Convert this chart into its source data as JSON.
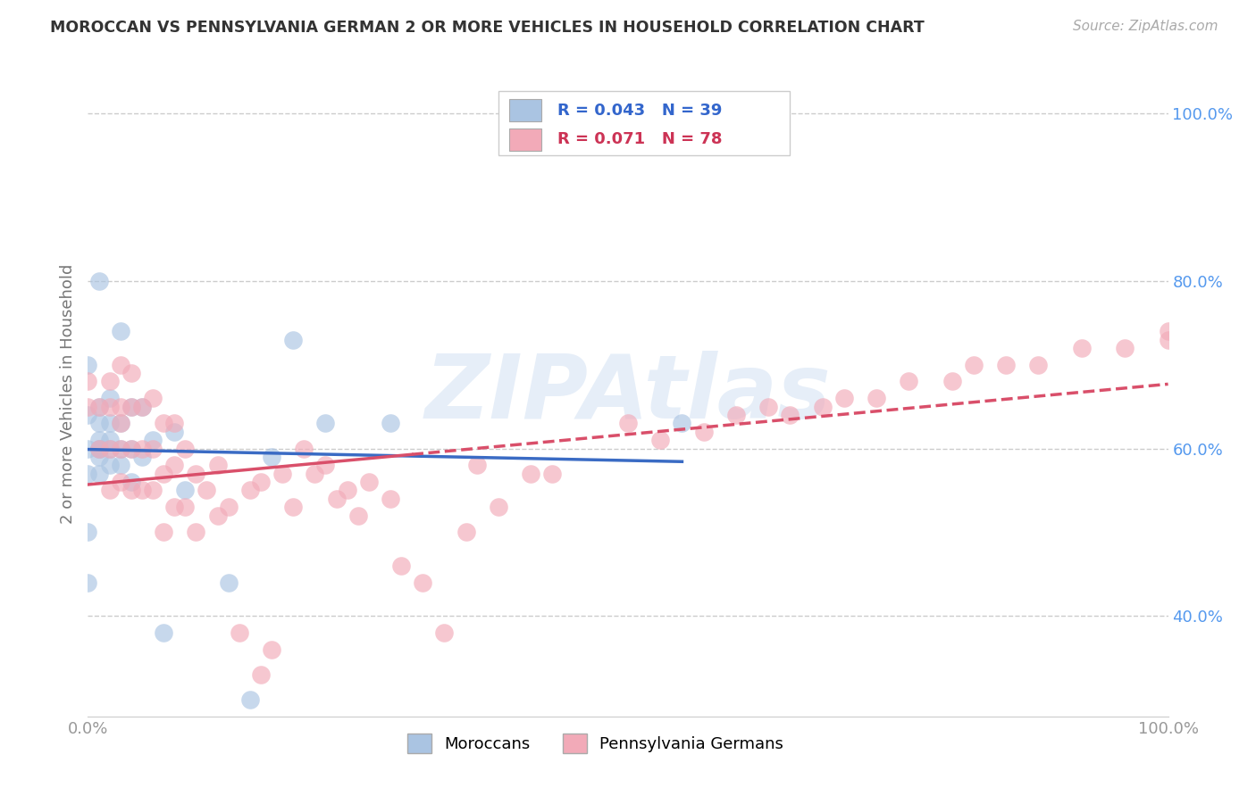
{
  "title": "MOROCCAN VS PENNSYLVANIA GERMAN 2 OR MORE VEHICLES IN HOUSEHOLD CORRELATION CHART",
  "source": "Source: ZipAtlas.com",
  "ylabel": "2 or more Vehicles in Household",
  "xmin": 0.0,
  "xmax": 1.0,
  "ymin": 0.28,
  "ymax": 1.05,
  "blue_R": 0.043,
  "blue_N": 39,
  "pink_R": 0.071,
  "pink_N": 78,
  "blue_color": "#aac4e2",
  "pink_color": "#f2aab8",
  "blue_line_color": "#3a6bc4",
  "pink_line_color": "#d94f6a",
  "watermark": "ZIPAtlas",
  "blue_scatter_x": [
    0.0,
    0.0,
    0.0,
    0.0,
    0.0,
    0.0,
    0.01,
    0.01,
    0.01,
    0.01,
    0.01,
    0.01,
    0.01,
    0.01,
    0.02,
    0.02,
    0.02,
    0.02,
    0.02,
    0.03,
    0.03,
    0.03,
    0.03,
    0.04,
    0.04,
    0.04,
    0.05,
    0.05,
    0.06,
    0.07,
    0.08,
    0.09,
    0.13,
    0.15,
    0.17,
    0.19,
    0.22,
    0.28,
    0.55
  ],
  "blue_scatter_y": [
    0.44,
    0.5,
    0.57,
    0.6,
    0.64,
    0.7,
    0.57,
    0.59,
    0.6,
    0.6,
    0.61,
    0.63,
    0.65,
    0.8,
    0.58,
    0.6,
    0.61,
    0.63,
    0.66,
    0.58,
    0.6,
    0.63,
    0.74,
    0.56,
    0.6,
    0.65,
    0.59,
    0.65,
    0.61,
    0.38,
    0.62,
    0.55,
    0.44,
    0.3,
    0.59,
    0.73,
    0.63,
    0.63,
    0.63
  ],
  "pink_scatter_x": [
    0.0,
    0.0,
    0.01,
    0.01,
    0.02,
    0.02,
    0.02,
    0.02,
    0.03,
    0.03,
    0.03,
    0.03,
    0.03,
    0.04,
    0.04,
    0.04,
    0.04,
    0.05,
    0.05,
    0.05,
    0.06,
    0.06,
    0.06,
    0.07,
    0.07,
    0.07,
    0.08,
    0.08,
    0.08,
    0.09,
    0.09,
    0.1,
    0.1,
    0.11,
    0.12,
    0.12,
    0.13,
    0.14,
    0.15,
    0.16,
    0.16,
    0.17,
    0.18,
    0.19,
    0.2,
    0.21,
    0.22,
    0.23,
    0.24,
    0.25,
    0.26,
    0.28,
    0.29,
    0.31,
    0.33,
    0.35,
    0.36,
    0.38,
    0.41,
    0.43,
    0.5,
    0.53,
    0.57,
    0.6,
    0.63,
    0.65,
    0.68,
    0.7,
    0.73,
    0.76,
    0.8,
    0.82,
    0.85,
    0.88,
    0.92,
    0.96,
    1.0,
    1.0
  ],
  "pink_scatter_y": [
    0.65,
    0.68,
    0.6,
    0.65,
    0.55,
    0.6,
    0.65,
    0.68,
    0.56,
    0.6,
    0.63,
    0.65,
    0.7,
    0.55,
    0.6,
    0.65,
    0.69,
    0.55,
    0.6,
    0.65,
    0.55,
    0.6,
    0.66,
    0.5,
    0.57,
    0.63,
    0.53,
    0.58,
    0.63,
    0.53,
    0.6,
    0.5,
    0.57,
    0.55,
    0.52,
    0.58,
    0.53,
    0.38,
    0.55,
    0.56,
    0.33,
    0.36,
    0.57,
    0.53,
    0.6,
    0.57,
    0.58,
    0.54,
    0.55,
    0.52,
    0.56,
    0.54,
    0.46,
    0.44,
    0.38,
    0.5,
    0.58,
    0.53,
    0.57,
    0.57,
    0.63,
    0.61,
    0.62,
    0.64,
    0.65,
    0.64,
    0.65,
    0.66,
    0.66,
    0.68,
    0.68,
    0.7,
    0.7,
    0.7,
    0.72,
    0.72,
    0.73,
    0.74
  ],
  "xtick_vals": [
    0.0,
    1.0
  ],
  "xtick_labels": [
    "0.0%",
    "100.0%"
  ],
  "ytick_vals": [
    0.4,
    0.6,
    0.8,
    1.0
  ],
  "ytick_labels": [
    "40.0%",
    "60.0%",
    "80.0%",
    "100.0%"
  ],
  "legend_labels": [
    "Moroccans",
    "Pennsylvania Germans"
  ],
  "background_color": "#ffffff",
  "grid_color": "#cccccc",
  "ytick_color": "#5599ee",
  "xtick_color": "#999999"
}
